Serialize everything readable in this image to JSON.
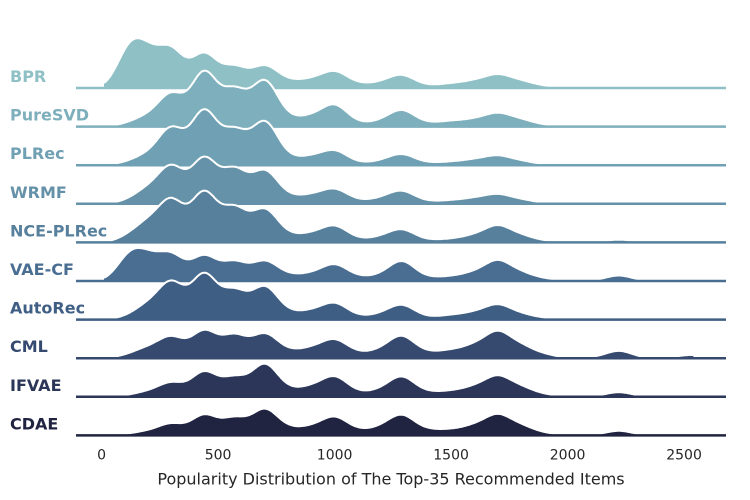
{
  "chart_data": {
    "type": "ridgeline",
    "title": "",
    "xlabel": "Popularity Distribution of The Top-35 Recommended Items",
    "ylabel": "",
    "xlim": [
      -110,
      2680
    ],
    "x_ticks": [
      0,
      500,
      1000,
      1500,
      2000,
      2500
    ],
    "grid": false,
    "kde_components": [
      [
        120,
        1.0
      ],
      [
        200,
        0.8
      ],
      [
        300,
        0.85
      ],
      [
        440,
        0.85
      ],
      [
        570,
        0.7
      ],
      [
        700,
        0.8
      ],
      [
        800,
        0.35
      ],
      [
        900,
        0.45
      ],
      [
        1000,
        0.65
      ],
      [
        1100,
        0.3
      ],
      [
        1200,
        0.4
      ],
      [
        1290,
        0.65
      ],
      [
        1400,
        0.35
      ],
      [
        1500,
        0.35
      ],
      [
        1600,
        0.45
      ],
      [
        1700,
        0.65
      ],
      [
        1800,
        0.45
      ],
      [
        1900,
        0.25
      ],
      [
        2100,
        0.15
      ],
      [
        2220,
        0.35
      ],
      [
        2330,
        0.1
      ],
      [
        2450,
        0.1
      ],
      [
        2530,
        0.3
      ]
    ],
    "series": [
      {
        "name": "BPR",
        "color": "#8ec0c5",
        "x_start": 10,
        "x_end": 2520,
        "weights": [
          0.7,
          0.65,
          0.8,
          0.75,
          0.55,
          0.5,
          0.3,
          0.3,
          0.45,
          0.2,
          0.2,
          0.35,
          0.1,
          0.2,
          0.25,
          0.35,
          0.25,
          0.12,
          0.02,
          0.08,
          0.01,
          0.01,
          0.01
        ]
      },
      {
        "name": "PureSVD",
        "color": "#7eafbc",
        "x_start": 10,
        "x_end": 2520,
        "weights": [
          0.05,
          0.2,
          0.7,
          1.2,
          0.95,
          1.05,
          0.35,
          0.35,
          0.6,
          0.15,
          0.2,
          0.45,
          0.15,
          0.25,
          0.25,
          0.35,
          0.25,
          0.1,
          0.02,
          0.05,
          0.01,
          0.01,
          0.01
        ]
      },
      {
        "name": "PLRec",
        "color": "#70a0b3",
        "x_start": 10,
        "x_end": 2520,
        "weights": [
          0.05,
          0.2,
          0.8,
          1.2,
          0.9,
          1.0,
          0.3,
          0.3,
          0.4,
          0.1,
          0.15,
          0.3,
          0.1,
          0.15,
          0.2,
          0.25,
          0.15,
          0.05,
          0.01,
          0.03,
          0.01,
          0.01,
          0.01
        ]
      },
      {
        "name": "WRMF",
        "color": "#6592a9",
        "x_start": 10,
        "x_end": 2520,
        "weights": [
          0.05,
          0.3,
          0.8,
          1.0,
          0.9,
          0.75,
          0.3,
          0.3,
          0.4,
          0.15,
          0.2,
          0.35,
          0.1,
          0.15,
          0.2,
          0.25,
          0.15,
          0.05,
          0.02,
          0.05,
          0.01,
          0.01,
          0.01
        ]
      },
      {
        "name": "NCE-PLRec",
        "color": "#57809d",
        "x_start": 10,
        "x_end": 2540,
        "weights": [
          0.1,
          0.4,
          0.9,
          1.1,
          0.9,
          0.75,
          0.3,
          0.3,
          0.45,
          0.15,
          0.2,
          0.35,
          0.1,
          0.15,
          0.25,
          0.45,
          0.25,
          0.1,
          0.02,
          0.15,
          0.02,
          0.02,
          0.08
        ]
      },
      {
        "name": "VAE-CF",
        "color": "#4a6e92",
        "x_start": 10,
        "x_end": 2540,
        "weights": [
          0.45,
          0.45,
          0.55,
          0.55,
          0.5,
          0.45,
          0.25,
          0.25,
          0.45,
          0.2,
          0.2,
          0.55,
          0.15,
          0.2,
          0.3,
          0.55,
          0.3,
          0.15,
          0.05,
          0.3,
          0.03,
          0.03,
          0.12
        ]
      },
      {
        "name": "AutoRec",
        "color": "#3f5e84",
        "x_start": 10,
        "x_end": 2540,
        "weights": [
          0.05,
          0.3,
          0.8,
          1.0,
          0.75,
          0.75,
          0.3,
          0.3,
          0.45,
          0.15,
          0.2,
          0.4,
          0.1,
          0.2,
          0.25,
          0.4,
          0.2,
          0.1,
          0.02,
          0.1,
          0.01,
          0.01,
          0.05
        ]
      },
      {
        "name": "CML",
        "color": "#364a6f",
        "x_start": 10,
        "x_end": 2540,
        "weights": [
          0.05,
          0.2,
          0.45,
          0.6,
          0.6,
          0.55,
          0.3,
          0.35,
          0.5,
          0.25,
          0.3,
          0.6,
          0.25,
          0.35,
          0.45,
          0.7,
          0.45,
          0.25,
          0.1,
          0.4,
          0.05,
          0.05,
          0.2
        ]
      },
      {
        "name": "IFVAE",
        "color": "#2b3658",
        "x_start": 10,
        "x_end": 2540,
        "weights": [
          0.02,
          0.1,
          0.3,
          0.55,
          0.5,
          0.75,
          0.3,
          0.35,
          0.55,
          0.2,
          0.25,
          0.55,
          0.2,
          0.25,
          0.35,
          0.55,
          0.35,
          0.15,
          0.05,
          0.25,
          0.03,
          0.03,
          0.1
        ]
      },
      {
        "name": "CDAE",
        "color": "#212440",
        "x_start": 10,
        "x_end": 2540,
        "weights": [
          0.02,
          0.08,
          0.25,
          0.45,
          0.45,
          0.6,
          0.3,
          0.3,
          0.5,
          0.25,
          0.3,
          0.55,
          0.25,
          0.25,
          0.35,
          0.55,
          0.35,
          0.15,
          0.05,
          0.25,
          0.03,
          0.03,
          0.1
        ]
      }
    ]
  }
}
